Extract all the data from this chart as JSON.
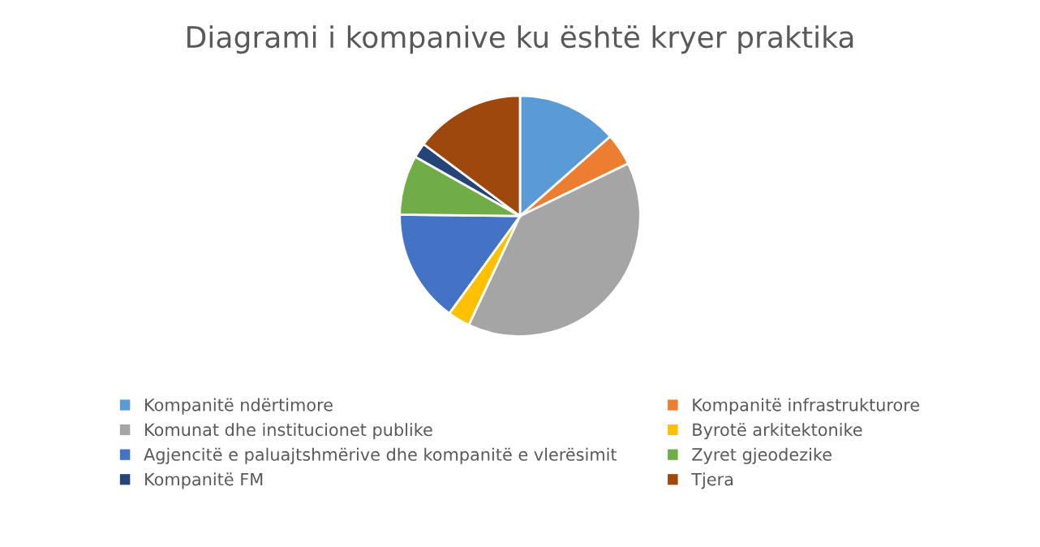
{
  "chart_data": {
    "type": "pie",
    "title": "Diagrami i kompanive ku është kryer praktika",
    "categories": [
      "Kompanitë ndërtimore",
      "Kompanitë infrastrukturore",
      "Komunat dhe institucionet publike",
      "Byrotë arkitektonike",
      "Agjencitë e paluajtshmërive dhe kompanitë e vlerësimit",
      "Zyret gjeodezike",
      "Kompanitë FM",
      "Tjera"
    ],
    "values": [
      13.5,
      4.3,
      39.2,
      3,
      15.2,
      8,
      2,
      14.8
    ],
    "colors": [
      "#5b9bd5",
      "#ed7d31",
      "#a5a5a5",
      "#ffc000",
      "#4472c4",
      "#70ad47",
      "#264478",
      "#9e480e"
    ],
    "legend": "bottom"
  }
}
